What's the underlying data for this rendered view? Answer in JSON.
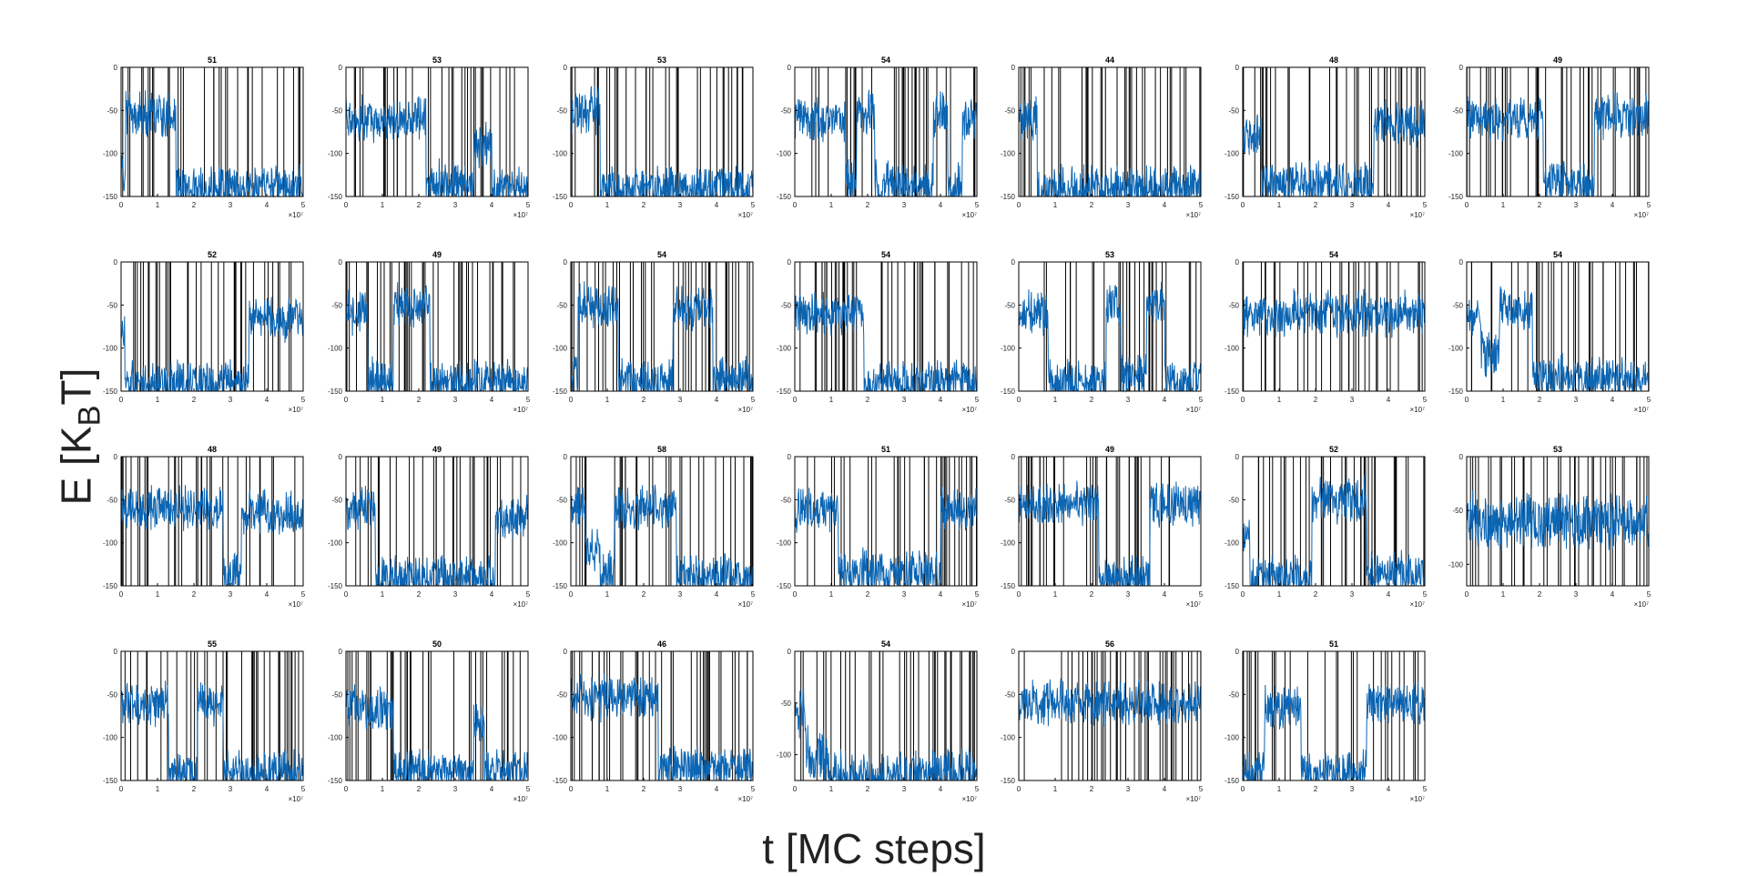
{
  "figure": {
    "ylabel": {
      "main": "E [K",
      "sub": "B",
      "tail": "T]"
    },
    "xlabel": "t [MC steps]"
  },
  "chart_data": {
    "type": "line",
    "layout_grid": "4x7 small multiples (27 panels)",
    "line_color": "#0b65b3",
    "event_line_color": "#000000",
    "shared_x": {
      "ticks": [
        0,
        1,
        2,
        3,
        4,
        5
      ],
      "exponent_label": "×10⁷",
      "xlim": [
        0,
        5
      ]
    },
    "y_ticks_default": [
      0,
      -50,
      -100,
      -150
    ],
    "panels": [
      {
        "title": "51",
        "ylim": [
          -150,
          0
        ],
        "levels": [
          [
            0,
            0.12,
            -120
          ],
          [
            0.12,
            1.5,
            -55
          ],
          [
            1.5,
            5,
            -140
          ]
        ]
      },
      {
        "title": "53",
        "ylim": [
          -150,
          0
        ],
        "levels": [
          [
            0,
            2.2,
            -60
          ],
          [
            2.2,
            3.5,
            -135
          ],
          [
            3.5,
            4.0,
            -90
          ],
          [
            4.0,
            5,
            -140
          ]
        ]
      },
      {
        "title": "53",
        "ylim": [
          -150,
          0
        ],
        "levels": [
          [
            0,
            0.8,
            -50
          ],
          [
            0.8,
            5,
            -140
          ]
        ]
      },
      {
        "title": "54",
        "ylim": [
          -150,
          0
        ],
        "levels": [
          [
            0,
            1.4,
            -60
          ],
          [
            1.4,
            1.7,
            -130
          ],
          [
            1.7,
            2.2,
            -50
          ],
          [
            2.2,
            3.8,
            -135
          ],
          [
            3.8,
            4.2,
            -55
          ],
          [
            4.2,
            4.6,
            -135
          ],
          [
            4.6,
            5,
            -60
          ]
        ]
      },
      {
        "title": "44",
        "ylim": [
          -150,
          0
        ],
        "levels": [
          [
            0,
            0.5,
            -60
          ],
          [
            0.5,
            5,
            -140
          ]
        ]
      },
      {
        "title": "48",
        "ylim": [
          -150,
          0
        ],
        "levels": [
          [
            0,
            0.5,
            -80
          ],
          [
            0.5,
            3.6,
            -135
          ],
          [
            3.6,
            5,
            -65
          ]
        ]
      },
      {
        "title": "49",
        "ylim": [
          -150,
          0
        ],
        "levels": [
          [
            0,
            2.1,
            -60
          ],
          [
            2.1,
            3.5,
            -135
          ],
          [
            3.5,
            5,
            -55
          ]
        ]
      },
      {
        "title": "52",
        "ylim": [
          -150,
          0
        ],
        "levels": [
          [
            0,
            0.1,
            -80
          ],
          [
            0.1,
            3.5,
            -140
          ],
          [
            3.5,
            5,
            -65
          ]
        ]
      },
      {
        "title": "49",
        "ylim": [
          -150,
          0
        ],
        "levels": [
          [
            0,
            0.6,
            -60
          ],
          [
            0.6,
            1.3,
            -135
          ],
          [
            1.3,
            2.3,
            -50
          ],
          [
            2.3,
            5,
            -140
          ]
        ]
      },
      {
        "title": "54",
        "ylim": [
          -150,
          0
        ],
        "levels": [
          [
            0,
            0.2,
            -130
          ],
          [
            0.2,
            1.3,
            -50
          ],
          [
            1.3,
            2.8,
            -140
          ],
          [
            2.8,
            3.9,
            -55
          ],
          [
            3.9,
            5,
            -135
          ]
        ]
      },
      {
        "title": "54",
        "ylim": [
          -150,
          0
        ],
        "levels": [
          [
            0,
            1.9,
            -60
          ],
          [
            1.9,
            5,
            -140
          ]
        ]
      },
      {
        "title": "53",
        "ylim": [
          -150,
          0
        ],
        "levels": [
          [
            0,
            0.8,
            -60
          ],
          [
            0.8,
            2.4,
            -140
          ],
          [
            2.4,
            2.8,
            -50
          ],
          [
            2.8,
            3.5,
            -130
          ],
          [
            3.5,
            4.0,
            -50
          ],
          [
            4.0,
            5,
            -140
          ]
        ]
      },
      {
        "title": "54",
        "ylim": [
          -150,
          0
        ],
        "levels": [
          [
            0,
            5,
            -60
          ]
        ]
      },
      {
        "title": "54",
        "ylim": [
          -150,
          0
        ],
        "levels": [
          [
            0,
            0.4,
            -60
          ],
          [
            0.4,
            0.9,
            -105
          ],
          [
            0.9,
            1.8,
            -55
          ],
          [
            1.8,
            5,
            -135
          ]
        ]
      },
      {
        "title": "48",
        "ylim": [
          -150,
          0
        ],
        "levels": [
          [
            0,
            2.8,
            -60
          ],
          [
            2.8,
            3.3,
            -140
          ],
          [
            3.3,
            5,
            -65
          ]
        ]
      },
      {
        "title": "49",
        "ylim": [
          -150,
          0
        ],
        "levels": [
          [
            0,
            0.8,
            -60
          ],
          [
            0.8,
            4.1,
            -140
          ],
          [
            4.1,
            5,
            -70
          ]
        ]
      },
      {
        "title": "58",
        "ylim": [
          -150,
          0
        ],
        "levels": [
          [
            0,
            0.4,
            -60
          ],
          [
            0.4,
            0.8,
            -110
          ],
          [
            0.8,
            1.2,
            -135
          ],
          [
            1.2,
            2.9,
            -60
          ],
          [
            2.9,
            5,
            -140
          ]
        ]
      },
      {
        "title": "51",
        "ylim": [
          -150,
          0
        ],
        "levels": [
          [
            0,
            1.2,
            -60
          ],
          [
            1.2,
            4.0,
            -135
          ],
          [
            4.0,
            5,
            -60
          ]
        ]
      },
      {
        "title": "49",
        "ylim": [
          -150,
          0
        ],
        "levels": [
          [
            0,
            2.2,
            -55
          ],
          [
            2.2,
            3.6,
            -140
          ],
          [
            3.6,
            5,
            -55
          ]
        ]
      },
      {
        "title": "52",
        "ylim": [
          -150,
          0
        ],
        "levels": [
          [
            0,
            0.2,
            -90
          ],
          [
            0.2,
            1.9,
            -140
          ],
          [
            1.9,
            3.4,
            -50
          ],
          [
            3.4,
            5,
            -135
          ]
        ]
      },
      {
        "title": "53",
        "ylim": [
          -120,
          0
        ],
        "yticks": [
          0,
          -50,
          -100
        ],
        "levels": [
          [
            0,
            5,
            -60
          ]
        ]
      },
      {
        "title": "55",
        "ylim": [
          -150,
          0
        ],
        "levels": [
          [
            0,
            1.3,
            -60
          ],
          [
            1.3,
            2.1,
            -140
          ],
          [
            2.1,
            2.8,
            -60
          ],
          [
            2.8,
            5,
            -140
          ]
        ]
      },
      {
        "title": "50",
        "ylim": [
          -150,
          0
        ],
        "levels": [
          [
            0,
            1.3,
            -65
          ],
          [
            1.3,
            3.5,
            -140
          ],
          [
            3.5,
            3.8,
            -80
          ],
          [
            3.8,
            5,
            -140
          ]
        ]
      },
      {
        "title": "46",
        "ylim": [
          -150,
          0
        ],
        "levels": [
          [
            0,
            2.4,
            -55
          ],
          [
            2.4,
            5,
            -135
          ]
        ]
      },
      {
        "title": "54",
        "ylim": [
          -125,
          0
        ],
        "yticks": [
          0,
          -50,
          -100
        ],
        "levels": [
          [
            0,
            0.3,
            -60
          ],
          [
            0.3,
            0.9,
            -100
          ],
          [
            0.9,
            5,
            -120
          ]
        ]
      },
      {
        "title": "56",
        "ylim": [
          -150,
          0
        ],
        "levels": [
          [
            0,
            5,
            -60
          ]
        ]
      },
      {
        "title": "51",
        "ylim": [
          -150,
          0
        ],
        "levels": [
          [
            0,
            0.6,
            -140
          ],
          [
            0.6,
            1.6,
            -65
          ],
          [
            1.6,
            3.4,
            -140
          ],
          [
            3.4,
            5,
            -60
          ]
        ]
      }
    ]
  }
}
